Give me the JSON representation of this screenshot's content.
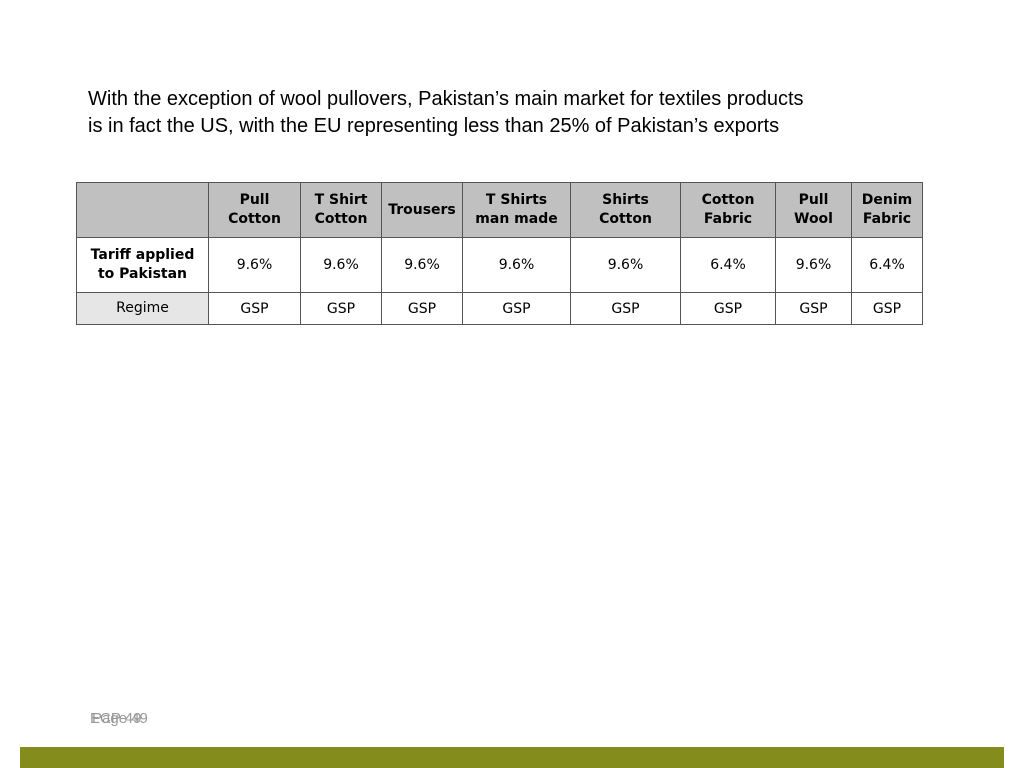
{
  "intro": {
    "line1": "With the exception of wool pullovers, Pakistan’s main market for textiles products",
    "line2": "is in fact the US, with the EU representing less than 25% of Pakistan’s exports"
  },
  "table": {
    "headers": [
      "",
      "Pull\nCotton",
      "T Shirt\nCotton",
      "Trousers",
      "T Shirts\nman made",
      "Shirts\nCotton",
      "Cotton\nFabric",
      "Pull\nWool",
      "Denim\nFabric"
    ],
    "rows": [
      {
        "label": "Tariff applied\nto Pakistan",
        "values": [
          "9.6%",
          "9.6%",
          "9.6%",
          "9.6%",
          "9.6%",
          "6.4%",
          "9.6%",
          "6.4%"
        ]
      },
      {
        "label": "Regime",
        "values": [
          "GSP",
          "GSP",
          "GSP",
          "GSP",
          "GSP",
          "GSP",
          "GSP",
          "GSP"
        ]
      }
    ]
  },
  "footer": {
    "text_a": "ECP 49",
    "text_b": "Page 49",
    "bar_color": "#848c1c"
  }
}
